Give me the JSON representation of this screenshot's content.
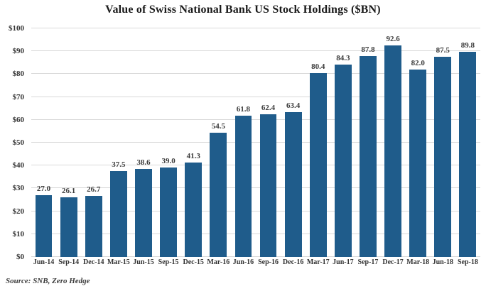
{
  "title": "Value of Swiss National Bank US Stock Holdings ($BN)",
  "source_note": "Source: SNB, Zero Hedge",
  "colors": {
    "bar": "#1f5c8b",
    "gridline": "#d9d9d9",
    "title_text": "#1a1a1a",
    "tick_text": "#333333",
    "value_text": "#3b3b3b",
    "background": "#ffffff"
  },
  "chart_data": {
    "type": "bar",
    "title": "Value of Swiss National Bank US Stock Holdings ($BN)",
    "xlabel": "",
    "ylabel": "",
    "categories": [
      "Jun-14",
      "Sep-14",
      "Dec-14",
      "Mar-15",
      "Jun-15",
      "Sep-15",
      "Dec-15",
      "Mar-16",
      "Jun-16",
      "Sep-16",
      "Dec-16",
      "Mar-17",
      "Jun-17",
      "Sep-17",
      "Dec-17",
      "Mar-18",
      "Jun-18",
      "Sep-18"
    ],
    "values": [
      27.0,
      26.1,
      26.7,
      37.5,
      38.6,
      39.0,
      41.3,
      54.5,
      61.8,
      62.4,
      63.4,
      80.4,
      84.3,
      87.8,
      92.6,
      82.0,
      87.5,
      89.8
    ],
    "value_label_decimals": 1,
    "ylim": [
      0,
      100
    ],
    "ytick_step": 10,
    "ytick_labels": [
      "$0",
      "$10",
      "$20",
      "$30",
      "$40",
      "$50",
      "$60",
      "$70",
      "$80",
      "$90",
      "$100"
    ],
    "grid": true,
    "legend": "none"
  }
}
